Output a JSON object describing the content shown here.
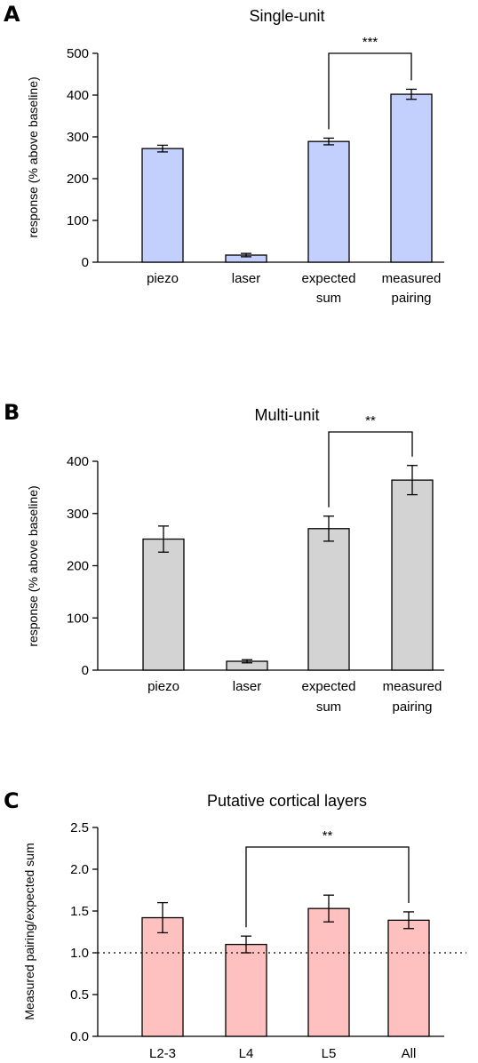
{
  "chart_data": [
    {
      "type": "bar",
      "panel_letter": "A",
      "title": "Single-unit",
      "ylabel": "response (% above baseline)",
      "xlabel": "",
      "ylim": [
        0,
        500
      ],
      "yticks": [
        0,
        100,
        200,
        300,
        400,
        500
      ],
      "categories": [
        [
          "piezo"
        ],
        [
          "laser"
        ],
        [
          "expected",
          "sum"
        ],
        [
          "measured",
          "pairing"
        ]
      ],
      "values": [
        272,
        17,
        289,
        402
      ],
      "errors": [
        8,
        4,
        8,
        12
      ],
      "bar_color": "#c3cffd",
      "grid": false,
      "legend": "none",
      "significance": [
        {
          "from": 2,
          "to": 3,
          "label": "***"
        }
      ]
    },
    {
      "type": "bar",
      "panel_letter": "B",
      "title": "Multi-unit",
      "ylabel": "response (% above baseline)",
      "xlabel": "",
      "ylim": [
        0,
        400
      ],
      "yticks": [
        0,
        100,
        200,
        300,
        400
      ],
      "categories": [
        [
          "piezo"
        ],
        [
          "laser"
        ],
        [
          "expected",
          "sum"
        ],
        [
          "measured",
          "pairing"
        ]
      ],
      "values": [
        251,
        17,
        271,
        364
      ],
      "errors": [
        25,
        3,
        24,
        28
      ],
      "bar_color": "#d3d3d3",
      "grid": false,
      "legend": "none",
      "significance": [
        {
          "from": 2,
          "to": 3,
          "label": "**"
        }
      ]
    },
    {
      "type": "bar",
      "panel_letter": "C",
      "title": "Putative cortical layers",
      "ylabel": "Measured pairing/expected sum",
      "xlabel": "",
      "ylim": [
        0,
        2.5
      ],
      "yticks": [
        "0.0",
        "0.5",
        "1.0",
        "1.5",
        "2.0",
        "2.5"
      ],
      "categories": [
        [
          "L2-3"
        ],
        [
          "L4"
        ],
        [
          "L5"
        ],
        [
          "All"
        ]
      ],
      "values": [
        1.42,
        1.1,
        1.53,
        1.39
      ],
      "errors": [
        0.18,
        0.1,
        0.16,
        0.1
      ],
      "bar_color": "#ffc0c0",
      "reference_line": 1.0,
      "grid": false,
      "legend": "none",
      "significance": [
        {
          "from": 1,
          "to": 3,
          "label": "**"
        }
      ]
    }
  ]
}
